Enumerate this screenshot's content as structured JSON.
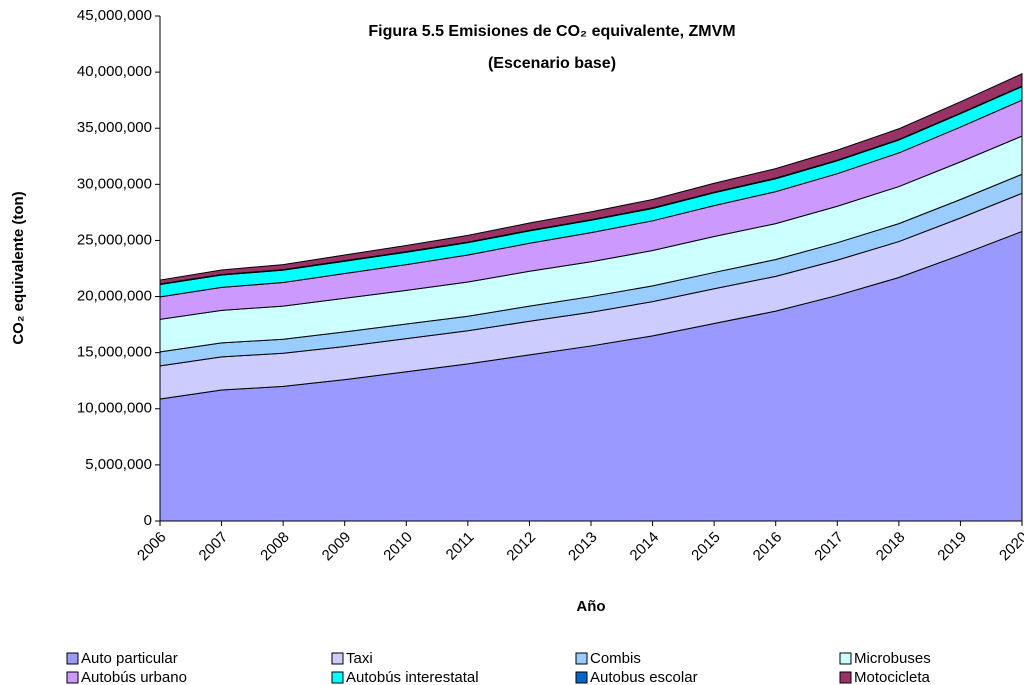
{
  "chart_data": {
    "type": "stacked_area",
    "title": "Figura 5.5 Emisiones de CO₂ equivalente, ZMVM",
    "subtitle": "(Escenario base)",
    "x_label": "Año",
    "y_label": "CO₂ equivalente (ton)",
    "categories": [
      "2006",
      "2007",
      "2008",
      "2009",
      "2010",
      "2011",
      "2012",
      "2013",
      "2014",
      "2015",
      "2016",
      "2017",
      "2018",
      "2019",
      "2020"
    ],
    "series": [
      {
        "name": "Auto particular",
        "color": "#9999ff",
        "values": [
          10870000,
          11670000,
          12000000,
          12600000,
          13300000,
          14000000,
          14800000,
          15600000,
          16500000,
          17600000,
          18700000,
          20100000,
          21700000,
          23700000,
          25800000
        ]
      },
      {
        "name": "Taxi",
        "color": "#ccccff",
        "values": [
          2950000,
          2950000,
          2950000,
          2950000,
          2950000,
          2950000,
          3000000,
          3000000,
          3050000,
          3100000,
          3100000,
          3150000,
          3200000,
          3300000,
          3400000
        ]
      },
      {
        "name": "Combis",
        "color": "#99ccff",
        "values": [
          1250000,
          1250000,
          1250000,
          1300000,
          1300000,
          1300000,
          1350000,
          1400000,
          1400000,
          1450000,
          1500000,
          1550000,
          1600000,
          1650000,
          1700000
        ]
      },
      {
        "name": "Microbuses",
        "color": "#ccffff",
        "values": [
          2900000,
          2900000,
          2950000,
          3000000,
          3000000,
          3050000,
          3100000,
          3100000,
          3150000,
          3200000,
          3200000,
          3250000,
          3300000,
          3350000,
          3400000
        ]
      },
      {
        "name": "Autobús urbano",
        "color": "#cc99ff",
        "values": [
          2000000,
          2050000,
          2100000,
          2200000,
          2300000,
          2400000,
          2500000,
          2600000,
          2650000,
          2750000,
          2850000,
          2900000,
          3000000,
          3100000,
          3200000
        ]
      },
      {
        "name": "Autobús interestatal",
        "color": "#00ffff",
        "values": [
          1100000,
          1100000,
          1100000,
          1100000,
          1100000,
          1100000,
          1100000,
          1100000,
          1100000,
          1150000,
          1150000,
          1150000,
          1150000,
          1200000,
          1200000
        ]
      },
      {
        "name": "Autobus escolar",
        "color": "#0066cc",
        "values": [
          50000,
          50000,
          50000,
          50000,
          50000,
          50000,
          50000,
          50000,
          50000,
          50000,
          50000,
          50000,
          50000,
          50000,
          50000
        ]
      },
      {
        "name": "Motocicleta",
        "color": "#993366",
        "values": [
          350000,
          400000,
          450000,
          500000,
          550000,
          600000,
          650000,
          700000,
          750000,
          800000,
          850000,
          900000,
          950000,
          1000000,
          1100000
        ]
      }
    ],
    "ylim": [
      0,
      45000000
    ],
    "yticks": [
      0,
      {
        "value": 5000000,
        "label": "5,000,000"
      },
      {
        "value": 10000000,
        "label": "10,000,000"
      },
      {
        "value": 15000000,
        "label": "15,000,000"
      },
      {
        "value": 20000000,
        "label": "20,000,000"
      },
      {
        "value": 25000000,
        "label": "25,000,000"
      },
      {
        "value": 30000000,
        "label": "30,000,000"
      },
      {
        "value": 35000000,
        "label": "35,000,000"
      },
      {
        "value": 40000000,
        "label": "40,000,000"
      },
      {
        "value": 45000000,
        "label": "45,000,000"
      }
    ],
    "grid": false,
    "legend": "bottom"
  }
}
